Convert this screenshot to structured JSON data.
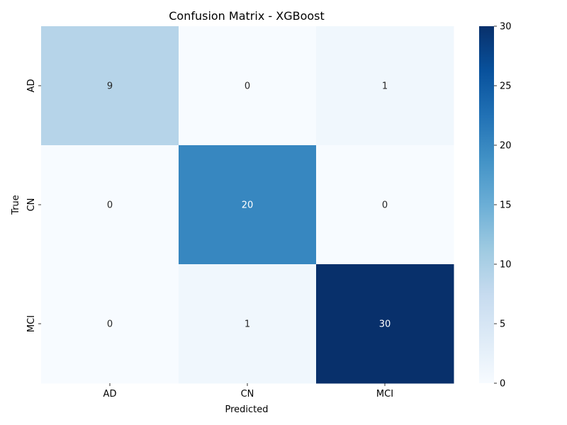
{
  "chart_data": {
    "type": "heatmap",
    "title": "Confusion Matrix - XGBoost",
    "xlabel": "Predicted",
    "ylabel": "True",
    "x_categories": [
      "AD",
      "CN",
      "MCI"
    ],
    "y_categories": [
      "AD",
      "CN",
      "MCI"
    ],
    "values": [
      [
        9,
        0,
        1
      ],
      [
        0,
        20,
        0
      ],
      [
        0,
        1,
        30
      ]
    ],
    "colormap": "Blues",
    "color_range": [
      0,
      30
    ],
    "colorbar_ticks": [
      "0",
      "5",
      "10",
      "15",
      "20",
      "25",
      "30"
    ],
    "colorbar_tick_values": [
      0,
      5,
      10,
      15,
      20,
      25,
      30
    ],
    "grid": false
  }
}
